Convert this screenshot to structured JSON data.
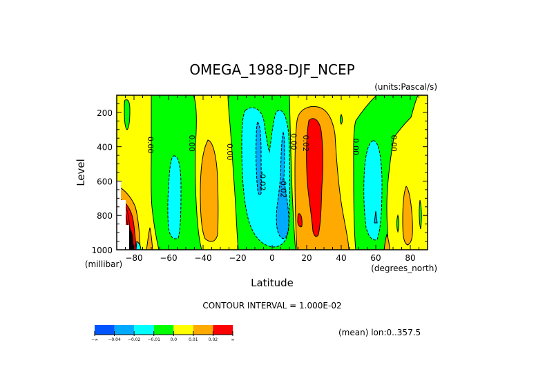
{
  "chart_data": {
    "type": "heatmap",
    "subtype": "filled-contour",
    "title": "OMEGA_1988-DJF_NCEP",
    "units_label": "(units:Pascal/s)",
    "xlabel": "Latitude",
    "x_units": "(degrees_north)",
    "ylabel": "Level",
    "y_units": "(millibar)",
    "xlim": [
      -90,
      90
    ],
    "ylim": [
      1000,
      100
    ],
    "x_ticks": [
      -80,
      -60,
      -40,
      -20,
      0,
      20,
      40,
      60,
      80
    ],
    "y_ticks": [
      200,
      400,
      600,
      800,
      1000
    ],
    "contour_interval_text": "CONTOUR INTERVAL = 1.000E-02",
    "mean_text": "(mean) lon:0..357.5",
    "colorbar": {
      "labels": [
        "-∞",
        "-0.04",
        "-0.02",
        "-0.01",
        "0.0",
        "0.01",
        "0.02",
        "∞"
      ],
      "colors": [
        "#0055ff",
        "#00aaff",
        "#00ffff",
        "#00ff00",
        "#ffff00",
        "#ffaa00",
        "#ff0000"
      ]
    },
    "contour_labels": [
      {
        "text": "0.00",
        "lat": -72,
        "lev": 390
      },
      {
        "text": "0.00",
        "lat": -48,
        "lev": 380
      },
      {
        "text": "0.00",
        "lat": -26,
        "lev": 430
      },
      {
        "text": "-0.02",
        "lat": -7,
        "lev": 600
      },
      {
        "text": "-0.02",
        "lat": 5,
        "lev": 640
      },
      {
        "text": "0.00",
        "lat": 11,
        "lev": 370
      },
      {
        "text": "0.02",
        "lat": 18,
        "lev": 380
      },
      {
        "text": "0.00",
        "lat": 47,
        "lev": 400
      },
      {
        "text": "0.00",
        "lat": 69,
        "lev": 380
      }
    ],
    "regions": [
      {
        "name": "green-band-sh-midlat",
        "level": "0.0 to -0.01",
        "lat_range": [
          -71,
          -32
        ],
        "lev_range": [
          100,
          1000
        ]
      },
      {
        "name": "cyan-sh-60",
        "level": "-0.01 to -0.02",
        "lat_range": [
          -64,
          -55
        ],
        "lev_range": [
          470,
          920
        ]
      },
      {
        "name": "orange-sh-40",
        "level": "0.01 to 0.02",
        "lat_range": [
          -45,
          -34
        ],
        "lev_range": [
          370,
          910
        ]
      },
      {
        "name": "green-band-tropics",
        "level": "0.0 to -0.01",
        "lat_range": [
          -30,
          12
        ],
        "lev_range": [
          100,
          1000
        ]
      },
      {
        "name": "cyan-tropics",
        "level": "-0.01 to -0.02",
        "lat_range": [
          -18,
          9
        ],
        "lev_range": [
          200,
          980
        ]
      },
      {
        "name": "blue-south-of-eq",
        "level": "< -0.02",
        "lat_range": [
          -9,
          -4
        ],
        "lev_range": [
          280,
          820
        ]
      },
      {
        "name": "blue-north-of-eq",
        "level": "< -0.02",
        "lat_range": [
          2,
          9
        ],
        "lev_range": [
          300,
          930
        ]
      },
      {
        "name": "orange-nh-subtropics",
        "level": "0.01 to 0.02",
        "lat_range": [
          11,
          42
        ],
        "lev_range": [
          160,
          1000
        ]
      },
      {
        "name": "red-nh-subtropics",
        "level": "> 0.02",
        "lat_range": [
          16,
          30
        ],
        "lev_range": [
          240,
          920
        ]
      },
      {
        "name": "green-band-nh",
        "level": "0.0 to -0.01",
        "lat_range": [
          45,
          75
        ],
        "lev_range": [
          100,
          1000
        ]
      },
      {
        "name": "cyan-nh-60",
        "level": "-0.01 to -0.02",
        "lat_range": [
          52,
          64
        ],
        "lev_range": [
          370,
          940
        ]
      },
      {
        "name": "orange-nh-70",
        "level": "0.01 to 0.02",
        "lat_range": [
          65,
          70
        ],
        "lev_range": [
          730,
          960
        ]
      },
      {
        "name": "red-antarctic-surface",
        "level": "> 0.02",
        "lat_range": [
          -90,
          -83
        ],
        "lev_range": [
          680,
          1000
        ]
      }
    ],
    "missing_region": {
      "lat_range": [
        -90,
        -85
      ],
      "lev_range": [
        600,
        1000
      ]
    },
    "grid": false,
    "legend": "bottom-left colorbar"
  }
}
